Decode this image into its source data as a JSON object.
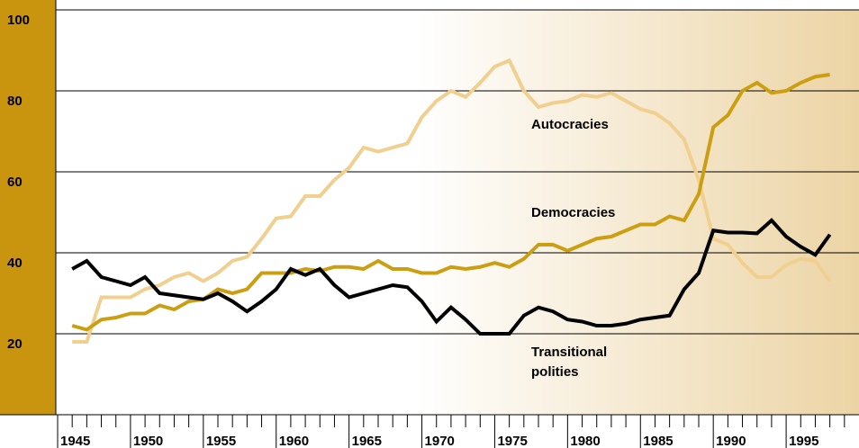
{
  "chart_data": {
    "type": "line",
    "x": [
      1946,
      1947,
      1948,
      1949,
      1950,
      1951,
      1952,
      1953,
      1954,
      1955,
      1956,
      1957,
      1958,
      1959,
      1960,
      1961,
      1962,
      1963,
      1964,
      1965,
      1966,
      1967,
      1968,
      1969,
      1970,
      1971,
      1972,
      1973,
      1974,
      1975,
      1976,
      1977,
      1978,
      1979,
      1980,
      1981,
      1982,
      1983,
      1984,
      1985,
      1986,
      1987,
      1988,
      1989,
      1990,
      1991,
      1992,
      1993,
      1994,
      1995,
      1996,
      1997,
      1998
    ],
    "series": [
      {
        "name": "Autocracies",
        "color": "#f0cf8f",
        "values": [
          18,
          18,
          29,
          29,
          29,
          31,
          32,
          34,
          35,
          33,
          35,
          38,
          39,
          43.5,
          48.5,
          49,
          54,
          54,
          58,
          61,
          66,
          65,
          66,
          67,
          73.5,
          77.5,
          80,
          78.5,
          82,
          86,
          87.5,
          80,
          76,
          77,
          77.5,
          79,
          78.5,
          79.5,
          77.5,
          75.5,
          74.5,
          72,
          68,
          58,
          43.5,
          42,
          37.5,
          34,
          34,
          37,
          38.5,
          38,
          33
        ]
      },
      {
        "name": "Democracies",
        "color": "#cc9e12",
        "values": [
          22,
          21,
          23.5,
          24,
          25,
          25,
          27,
          26,
          28,
          28.5,
          31,
          30,
          31,
          35,
          35,
          35,
          36,
          35.5,
          36.5,
          36.5,
          36,
          38,
          36,
          36,
          35,
          35,
          36.5,
          36,
          36.5,
          37.5,
          36.5,
          38.5,
          42,
          42,
          40.5,
          42,
          43.5,
          44,
          45.5,
          47,
          47,
          49,
          48,
          54.5,
          71,
          74,
          80,
          82,
          79.5,
          80,
          82,
          83.5,
          84
        ]
      },
      {
        "name": "Transitional polities",
        "color": "#000000",
        "values": [
          36,
          38,
          34,
          33,
          32,
          34,
          30,
          29.5,
          29,
          28.5,
          30,
          28,
          25.5,
          28,
          31,
          36,
          34.5,
          36,
          32,
          29,
          30,
          31,
          32,
          31.5,
          28,
          23,
          26.5,
          23.5,
          20,
          20,
          20,
          24.5,
          26.5,
          25.5,
          23.5,
          23,
          22,
          22,
          22.5,
          23.5,
          24,
          24.5,
          31,
          35,
          45.5,
          45,
          45,
          44.8,
          48,
          44,
          41.5,
          39.5,
          44.5
        ]
      }
    ],
    "xlim": [
      1945,
      2000
    ],
    "xticks": [
      1945,
      1950,
      1955,
      1960,
      1965,
      1970,
      1975,
      1980,
      1985,
      1990,
      1995
    ],
    "ylim": [
      0,
      100
    ],
    "yticks": [
      20,
      40,
      60,
      80,
      100
    ],
    "grid": true
  }
}
